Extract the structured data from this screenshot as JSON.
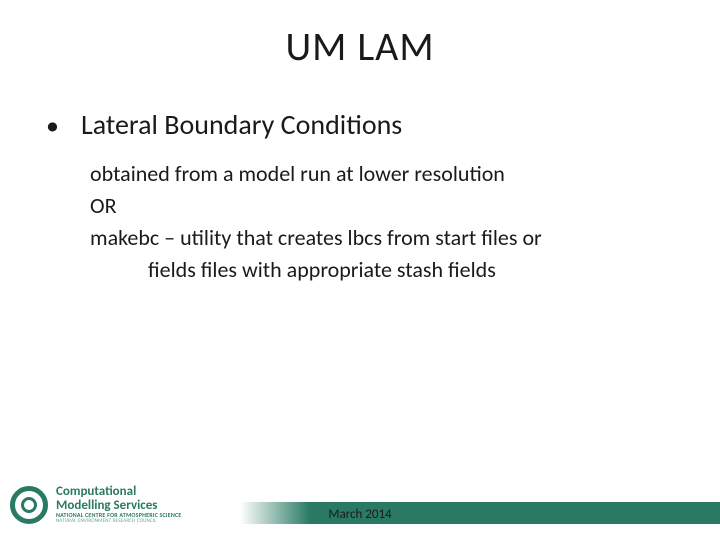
{
  "title": "UM LAM",
  "bullet": {
    "marker": "•",
    "text": "Lateral Boundary Conditions"
  },
  "sub": {
    "line1": "obtained from a model run at lower resolution",
    "line2": "OR",
    "line3": "makebc – utility that creates lbcs from start files or",
    "line4": "fields files with appropriate stash fields"
  },
  "footer": {
    "date": "March 2014",
    "bar_color_left": "#ffffff",
    "bar_color_right": "#2a7a63"
  },
  "logo": {
    "line1": "Computational",
    "line2": "Modelling Services",
    "line3": "NATIONAL CENTRE FOR ATMOSPHERIC SCIENCE",
    "line4": "NATURAL ENVIRONMENT RESEARCH COUNCIL",
    "brand_color": "#2a7a63"
  }
}
